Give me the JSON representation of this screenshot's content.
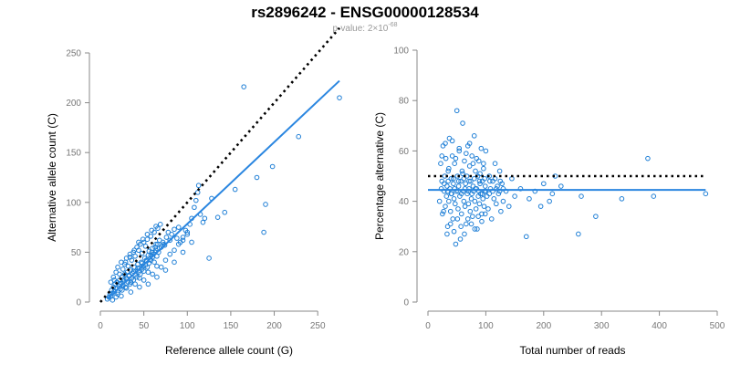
{
  "header": {
    "title": "rs2896242 - ENSG00000128534",
    "pvalue_prefix": "p-value: 2×10",
    "pvalue_exponent": "-68"
  },
  "colors": {
    "points": "#1f7fd6",
    "fit_line": "#2a86e0",
    "reference_line": "#000000"
  },
  "chart_data": [
    {
      "type": "scatter",
      "title": "",
      "xlabel": "Reference allele count (G)",
      "ylabel": "Alternative allele count (C)",
      "xlim": [
        0,
        275
      ],
      "ylim": [
        0,
        250
      ],
      "xticks": [
        0,
        50,
        100,
        150,
        200,
        250
      ],
      "yticks": [
        0,
        50,
        100,
        150,
        200,
        250
      ],
      "reference_line": {
        "style": "dotted",
        "x": [
          0,
          275
        ],
        "y": [
          0,
          275
        ]
      },
      "fit_line": {
        "style": "solid",
        "x": [
          8,
          275
        ],
        "y": [
          3,
          222
        ]
      },
      "points": [
        [
          8,
          3
        ],
        [
          10,
          5
        ],
        [
          11,
          8
        ],
        [
          12,
          6
        ],
        [
          13,
          12
        ],
        [
          14,
          9
        ],
        [
          15,
          15
        ],
        [
          16,
          11
        ],
        [
          17,
          18
        ],
        [
          18,
          14
        ],
        [
          19,
          20
        ],
        [
          20,
          10
        ],
        [
          21,
          16
        ],
        [
          22,
          22
        ],
        [
          23,
          13
        ],
        [
          24,
          19
        ],
        [
          25,
          25
        ],
        [
          26,
          17
        ],
        [
          27,
          21
        ],
        [
          28,
          28
        ],
        [
          29,
          15
        ],
        [
          30,
          23
        ],
        [
          31,
          30
        ],
        [
          32,
          20
        ],
        [
          33,
          26
        ],
        [
          34,
          18
        ],
        [
          35,
          32
        ],
        [
          36,
          24
        ],
        [
          37,
          29
        ],
        [
          38,
          22
        ],
        [
          39,
          35
        ],
        [
          40,
          27
        ],
        [
          41,
          31
        ],
        [
          42,
          25
        ],
        [
          43,
          38
        ],
        [
          44,
          30
        ],
        [
          45,
          34
        ],
        [
          46,
          28
        ],
        [
          47,
          40
        ],
        [
          48,
          33
        ],
        [
          49,
          36
        ],
        [
          50,
          31
        ],
        [
          51,
          44
        ],
        [
          52,
          37
        ],
        [
          53,
          41
        ],
        [
          54,
          35
        ],
        [
          55,
          47
        ],
        [
          56,
          39
        ],
        [
          57,
          43
        ],
        [
          58,
          42
        ],
        [
          59,
          50
        ],
        [
          60,
          45
        ],
        [
          61,
          48
        ],
        [
          62,
          40
        ],
        [
          63,
          55
        ],
        [
          64,
          52
        ],
        [
          65,
          46
        ],
        [
          66,
          58
        ],
        [
          67,
          50
        ],
        [
          68,
          62
        ],
        [
          70,
          55
        ],
        [
          72,
          60
        ],
        [
          74,
          57
        ],
        [
          76,
          65
        ],
        [
          78,
          70
        ],
        [
          80,
          62
        ],
        [
          82,
          68
        ],
        [
          85,
          73
        ],
        [
          88,
          64
        ],
        [
          90,
          75
        ],
        [
          92,
          60
        ],
        [
          95,
          65
        ],
        [
          98,
          72
        ],
        [
          100,
          70
        ],
        [
          103,
          78
        ],
        [
          105,
          84
        ],
        [
          108,
          95
        ],
        [
          110,
          102
        ],
        [
          112,
          110
        ],
        [
          113,
          117
        ],
        [
          115,
          88
        ],
        [
          118,
          80
        ],
        [
          120,
          84
        ],
        [
          125,
          44
        ],
        [
          128,
          104
        ],
        [
          135,
          85
        ],
        [
          143,
          90
        ],
        [
          155,
          113
        ],
        [
          165,
          216
        ],
        [
          180,
          125
        ],
        [
          188,
          70
        ],
        [
          190,
          98
        ],
        [
          198,
          136
        ],
        [
          228,
          166
        ],
        [
          275,
          205
        ],
        [
          15,
          25
        ],
        [
          18,
          30
        ],
        [
          20,
          35
        ],
        [
          22,
          28
        ],
        [
          24,
          40
        ],
        [
          26,
          33
        ],
        [
          28,
          38
        ],
        [
          30,
          44
        ],
        [
          32,
          36
        ],
        [
          34,
          48
        ],
        [
          36,
          42
        ],
        [
          38,
          50
        ],
        [
          40,
          46
        ],
        [
          42,
          55
        ],
        [
          44,
          52
        ],
        [
          46,
          58
        ],
        [
          48,
          49
        ],
        [
          50,
          60
        ],
        [
          52,
          56
        ],
        [
          54,
          63
        ],
        [
          56,
          51
        ],
        [
          58,
          66
        ],
        [
          60,
          54
        ],
        [
          62,
          70
        ],
        [
          64,
          58
        ],
        [
          66,
          74
        ],
        [
          20,
          8
        ],
        [
          25,
          12
        ],
        [
          30,
          14
        ],
        [
          35,
          20
        ],
        [
          40,
          18
        ],
        [
          45,
          24
        ],
        [
          50,
          22
        ],
        [
          55,
          30
        ],
        [
          60,
          28
        ],
        [
          65,
          36
        ],
        [
          70,
          35
        ],
        [
          75,
          42
        ],
        [
          80,
          48
        ],
        [
          85,
          52
        ],
        [
          90,
          58
        ],
        [
          95,
          62
        ],
        [
          100,
          68
        ],
        [
          22,
          18
        ],
        [
          27,
          23
        ],
        [
          33,
          27
        ],
        [
          38,
          31
        ],
        [
          43,
          34
        ],
        [
          48,
          39
        ],
        [
          53,
          42
        ],
        [
          58,
          47
        ],
        [
          63,
          50
        ],
        [
          68,
          54
        ],
        [
          73,
          58
        ],
        [
          29,
          40
        ],
        [
          34,
          45
        ],
        [
          39,
          52
        ],
        [
          44,
          60
        ],
        [
          49,
          63
        ],
        [
          54,
          68
        ],
        [
          59,
          72
        ],
        [
          64,
          76
        ],
        [
          69,
          78
        ],
        [
          12,
          20
        ],
        [
          16,
          22
        ],
        [
          14,
          2
        ],
        [
          18,
          5
        ],
        [
          24,
          6
        ],
        [
          35,
          10
        ],
        [
          45,
          15
        ],
        [
          55,
          18
        ],
        [
          65,
          25
        ],
        [
          75,
          32
        ],
        [
          85,
          40
        ],
        [
          95,
          50
        ],
        [
          105,
          60
        ]
      ]
    },
    {
      "type": "scatter",
      "title": "",
      "xlabel": "Total number of reads",
      "ylabel": "Percentage alternative (C)",
      "xlim": [
        0,
        500
      ],
      "ylim": [
        0,
        100
      ],
      "xticks": [
        0,
        100,
        200,
        300,
        400,
        500
      ],
      "yticks": [
        0,
        20,
        40,
        60,
        80,
        100
      ],
      "reference_line": {
        "style": "dotted",
        "x": [
          0,
          480
        ],
        "y": [
          50,
          50
        ]
      },
      "fit_line": {
        "style": "solid",
        "x": [
          0,
          480
        ],
        "y": [
          44.5,
          44.5
        ]
      },
      "points": [
        [
          20,
          40
        ],
        [
          22,
          55
        ],
        [
          24,
          48
        ],
        [
          25,
          35
        ],
        [
          26,
          62
        ],
        [
          28,
          44
        ],
        [
          29,
          50
        ],
        [
          30,
          38
        ],
        [
          31,
          57
        ],
        [
          32,
          42
        ],
        [
          33,
          46
        ],
        [
          34,
          30
        ],
        [
          35,
          52
        ],
        [
          36,
          40
        ],
        [
          37,
          65
        ],
        [
          38,
          45
        ],
        [
          39,
          36
        ],
        [
          40,
          49
        ],
        [
          41,
          43
        ],
        [
          42,
          58
        ],
        [
          43,
          33
        ],
        [
          44,
          47
        ],
        [
          45,
          41
        ],
        [
          46,
          55
        ],
        [
          47,
          39
        ],
        [
          48,
          23
        ],
        [
          49,
          44
        ],
        [
          50,
          76
        ],
        [
          51,
          50
        ],
        [
          52,
          37
        ],
        [
          53,
          46
        ],
        [
          54,
          60
        ],
        [
          55,
          42
        ],
        [
          56,
          25
        ],
        [
          57,
          48
        ],
        [
          58,
          35
        ],
        [
          59,
          52
        ],
        [
          60,
          71
        ],
        [
          61,
          44
        ],
        [
          62,
          40
        ],
        [
          63,
          56
        ],
        [
          64,
          38
        ],
        [
          65,
          47
        ],
        [
          66,
          31
        ],
        [
          67,
          50
        ],
        [
          68,
          43
        ],
        [
          69,
          62
        ],
        [
          70,
          39
        ],
        [
          71,
          45
        ],
        [
          72,
          54
        ],
        [
          73,
          36
        ],
        [
          74,
          48
        ],
        [
          75,
          41
        ],
        [
          76,
          58
        ],
        [
          77,
          34
        ],
        [
          78,
          46
        ],
        [
          79,
          44
        ],
        [
          80,
          66
        ],
        [
          81,
          40
        ],
        [
          82,
          52
        ],
        [
          83,
          37
        ],
        [
          84,
          45
        ],
        [
          85,
          29
        ],
        [
          86,
          50
        ],
        [
          87,
          42
        ],
        [
          88,
          56
        ],
        [
          89,
          39
        ],
        [
          90,
          47
        ],
        [
          91,
          43
        ],
        [
          92,
          61
        ],
        [
          93,
          35
        ],
        [
          94,
          48
        ],
        [
          95,
          41
        ],
        [
          96,
          53
        ],
        [
          97,
          38
        ],
        [
          98,
          44
        ],
        [
          99,
          46
        ],
        [
          100,
          60
        ],
        [
          102,
          42
        ],
        [
          104,
          37
        ],
        [
          106,
          50
        ],
        [
          108,
          45
        ],
        [
          110,
          33
        ],
        [
          112,
          48
        ],
        [
          114,
          41
        ],
        [
          116,
          55
        ],
        [
          118,
          39
        ],
        [
          120,
          46
        ],
        [
          122,
          43
        ],
        [
          124,
          52
        ],
        [
          126,
          36
        ],
        [
          128,
          47
        ],
        [
          130,
          40
        ],
        [
          135,
          44
        ],
        [
          140,
          38
        ],
        [
          145,
          49
        ],
        [
          150,
          42
        ],
        [
          160,
          45
        ],
        [
          170,
          26
        ],
        [
          175,
          41
        ],
        [
          185,
          44
        ],
        [
          195,
          38
        ],
        [
          200,
          47
        ],
        [
          210,
          40
        ],
        [
          215,
          43
        ],
        [
          220,
          50
        ],
        [
          230,
          46
        ],
        [
          260,
          27
        ],
        [
          265,
          42
        ],
        [
          290,
          34
        ],
        [
          335,
          41
        ],
        [
          380,
          57
        ],
        [
          390,
          42
        ],
        [
          480,
          43
        ],
        [
          24,
          58
        ],
        [
          27,
          36
        ],
        [
          30,
          63
        ],
        [
          33,
          27
        ],
        [
          36,
          53
        ],
        [
          39,
          31
        ],
        [
          42,
          64
        ],
        [
          45,
          28
        ],
        [
          48,
          57
        ],
        [
          51,
          33
        ],
        [
          54,
          61
        ],
        [
          57,
          30
        ],
        [
          60,
          51
        ],
        [
          63,
          27
        ],
        [
          66,
          59
        ],
        [
          69,
          33
        ],
        [
          72,
          63
        ],
        [
          75,
          31
        ],
        [
          78,
          55
        ],
        [
          81,
          29
        ],
        [
          84,
          57
        ],
        [
          87,
          34
        ],
        [
          90,
          51
        ],
        [
          93,
          32
        ],
        [
          96,
          55
        ],
        [
          99,
          35
        ],
        [
          23,
          45
        ],
        [
          28,
          47
        ],
        [
          34,
          44
        ],
        [
          40,
          43
        ],
        [
          46,
          45
        ],
        [
          52,
          44
        ],
        [
          58,
          43
        ],
        [
          64,
          45
        ],
        [
          70,
          44
        ],
        [
          76,
          43
        ],
        [
          82,
          45
        ],
        [
          88,
          44
        ],
        [
          94,
          43
        ],
        [
          100,
          44
        ],
        [
          106,
          43
        ],
        [
          112,
          44
        ],
        [
          118,
          45
        ],
        [
          124,
          44
        ],
        [
          130,
          45
        ],
        [
          35,
          48
        ],
        [
          44,
          49
        ],
        [
          53,
          48
        ],
        [
          62,
          49
        ],
        [
          71,
          48
        ],
        [
          80,
          49
        ],
        [
          89,
          48
        ],
        [
          98,
          49
        ],
        [
          107,
          48
        ],
        [
          116,
          49
        ],
        [
          125,
          48
        ]
      ]
    }
  ]
}
